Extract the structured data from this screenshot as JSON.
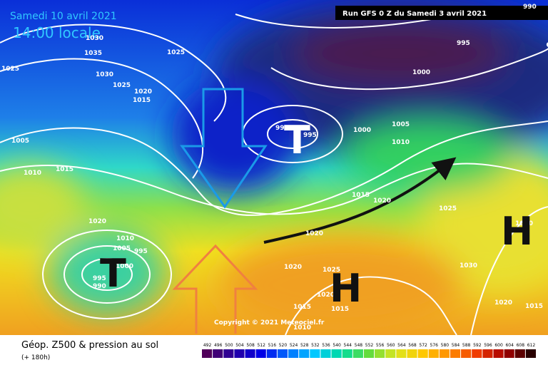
{
  "header": {
    "date": "Samedi 10 avril 2021",
    "time": "14:00 locale",
    "run": "Run GFS 0 Z du Samedi 3 avril 2021"
  },
  "map": {
    "pressure_labels": [
      "1030",
      "1035",
      "1025",
      "1025",
      "1030",
      "1025",
      "1020",
      "1015",
      "1005",
      "1010",
      "1015",
      "1020",
      "1010",
      "1005",
      "995",
      "1000",
      "995",
      "990",
      "990",
      "995",
      "1000",
      "1005",
      "1010",
      "1015",
      "1020",
      "1025",
      "1020",
      "1020",
      "1025",
      "1020",
      "1015",
      "1015",
      "1010",
      "1030",
      "1030",
      "1020",
      "1015",
      "1000",
      "995",
      "990"
    ],
    "centers": [
      "T",
      "T",
      "H",
      "H"
    ],
    "copyright": "Copyright © 2021 Meteociel.fr"
  },
  "legend": {
    "title": "Géop. Z500 & pression au sol",
    "subtitle": "(+ 180h)",
    "scale": [
      492,
      496,
      500,
      504,
      508,
      512,
      516,
      520,
      524,
      528,
      532,
      536,
      540,
      544,
      548,
      552,
      556,
      560,
      564,
      568,
      572,
      576,
      580,
      584,
      588,
      592,
      596,
      600,
      604,
      608,
      612
    ]
  }
}
